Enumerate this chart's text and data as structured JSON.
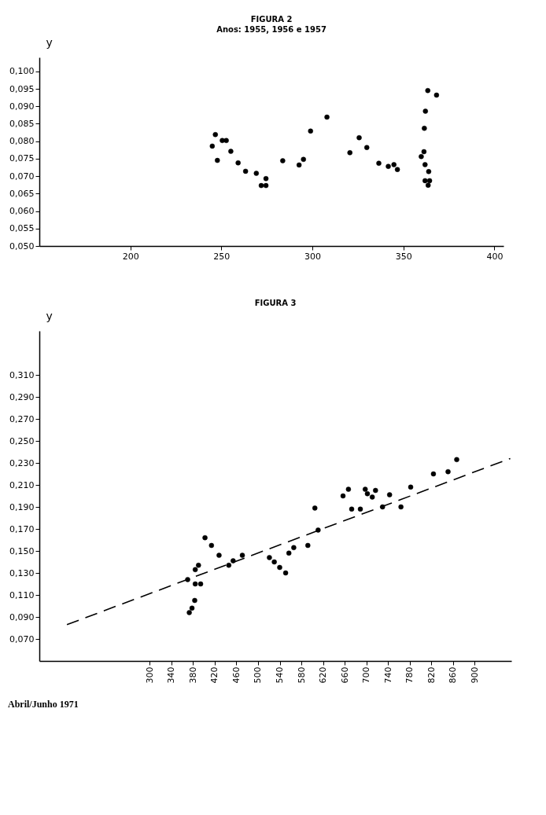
{
  "chart_data": [
    {
      "type": "scatter",
      "title": "FIGURA 2",
      "subtitle": "Anos: 1955, 1956 e 1957",
      "ylabel": "y",
      "xlim": [
        150,
        405
      ],
      "ylim": [
        0.05,
        0.104
      ],
      "xticks": [
        200,
        250,
        300,
        350,
        400
      ],
      "yticks": [
        {
          "value": 0.05,
          "label": "0,050"
        },
        {
          "value": 0.055,
          "label": "0,055"
        },
        {
          "value": 0.06,
          "label": "0,060"
        },
        {
          "value": 0.065,
          "label": "0,065"
        },
        {
          "value": 0.07,
          "label": "0,070"
        },
        {
          "value": 0.075,
          "label": "0,075"
        },
        {
          "value": 0.08,
          "label": "0,080"
        },
        {
          "value": 0.085,
          "label": "0,085"
        },
        {
          "value": 0.09,
          "label": "0,090"
        },
        {
          "value": 0.095,
          "label": "0,095"
        },
        {
          "value": 0.1,
          "label": "0,100"
        }
      ],
      "grid": false,
      "marker": "circle",
      "series": [
        {
          "color": "#000000",
          "x": [
            245.0,
            246.7,
            247.8,
            250.5,
            252.7,
            255.2,
            259.2,
            263.3,
            269.2,
            274.5,
            271.9,
            274.5,
            283.7,
            292.7,
            295.1,
            299.0,
            308.0,
            320.6,
            325.7,
            329.9,
            336.5,
            341.7,
            344.8,
            346.7,
            359.8,
            361.3,
            361.5,
            362.1,
            363.4,
            368.2,
            361.9,
            363.9,
            361.9,
            364.4,
            363.6
          ],
          "values": [
            0.0786,
            0.0819,
            0.0745,
            0.0802,
            0.0802,
            0.0771,
            0.0738,
            0.0714,
            0.0708,
            0.0693,
            0.0673,
            0.0673,
            0.0744,
            0.0732,
            0.0748,
            0.0829,
            0.0869,
            0.0767,
            0.081,
            0.0782,
            0.0737,
            0.0728,
            0.0733,
            0.0719,
            0.0756,
            0.077,
            0.0837,
            0.0886,
            0.0945,
            0.0932,
            0.0733,
            0.0713,
            0.0687,
            0.0687,
            0.0674
          ]
        }
      ]
    },
    {
      "type": "scatter",
      "title": "FIGURA 3",
      "ylabel": "y",
      "xlim": [
        96,
        968
      ],
      "ylim": [
        0.05,
        0.35
      ],
      "xticks": [
        300,
        340,
        380,
        420,
        460,
        500,
        540,
        580,
        620,
        660,
        700,
        740,
        780,
        820,
        860,
        900
      ],
      "yticks": [
        {
          "value": 0.07,
          "label": "0,070"
        },
        {
          "value": 0.09,
          "label": "0,090"
        },
        {
          "value": 0.11,
          "label": "0,110"
        },
        {
          "value": 0.13,
          "label": "0,130"
        },
        {
          "value": 0.15,
          "label": "0,150"
        },
        {
          "value": 0.17,
          "label": "0,170"
        },
        {
          "value": 0.19,
          "label": "0,190"
        },
        {
          "value": 0.21,
          "label": "0,210"
        },
        {
          "value": 0.23,
          "label": "0,230"
        },
        {
          "value": 0.25,
          "label": "0,250"
        },
        {
          "value": 0.27,
          "label": "0,270"
        },
        {
          "value": 0.29,
          "label": "0,290"
        },
        {
          "value": 0.31,
          "label": "0,310"
        }
      ],
      "grid": false,
      "marker": "circle",
      "annotations": [
        "Abril/Junho  1971"
      ],
      "series": [
        {
          "color": "#000000",
          "x": [
            373,
            378,
            383,
            384,
            394,
            384,
            390,
            402,
            414,
            428,
            446,
            454,
            471,
            521,
            530,
            540,
            551,
            557,
            566,
            592,
            605,
            657,
            667,
            673,
            689,
            698,
            702,
            711,
            717,
            743,
            764,
            782,
            824,
            851,
            867
          ],
          "values": [
            0.094,
            0.098,
            0.105,
            0.12,
            0.12,
            0.133,
            0.137,
            0.162,
            0.155,
            0.146,
            0.137,
            0.141,
            0.146,
            0.144,
            0.14,
            0.135,
            0.13,
            0.148,
            0.153,
            0.155,
            0.189,
            0.2,
            0.206,
            0.188,
            0.188,
            0.206,
            0.202,
            0.199,
            0.205,
            0.201,
            0.19,
            0.208,
            0.22,
            0.222,
            0.233
          ]
        },
        {
          "color": "#000000",
          "x": [
            370,
            611,
            730
          ],
          "values": [
            0.124,
            0.169,
            0.19
          ]
        },
        {
          "type": "line",
          "line_style": "dashed",
          "marker": "none",
          "color": "#000000",
          "x": [
            147,
            966
          ],
          "values": [
            0.083,
            0.234
          ]
        }
      ]
    }
  ]
}
